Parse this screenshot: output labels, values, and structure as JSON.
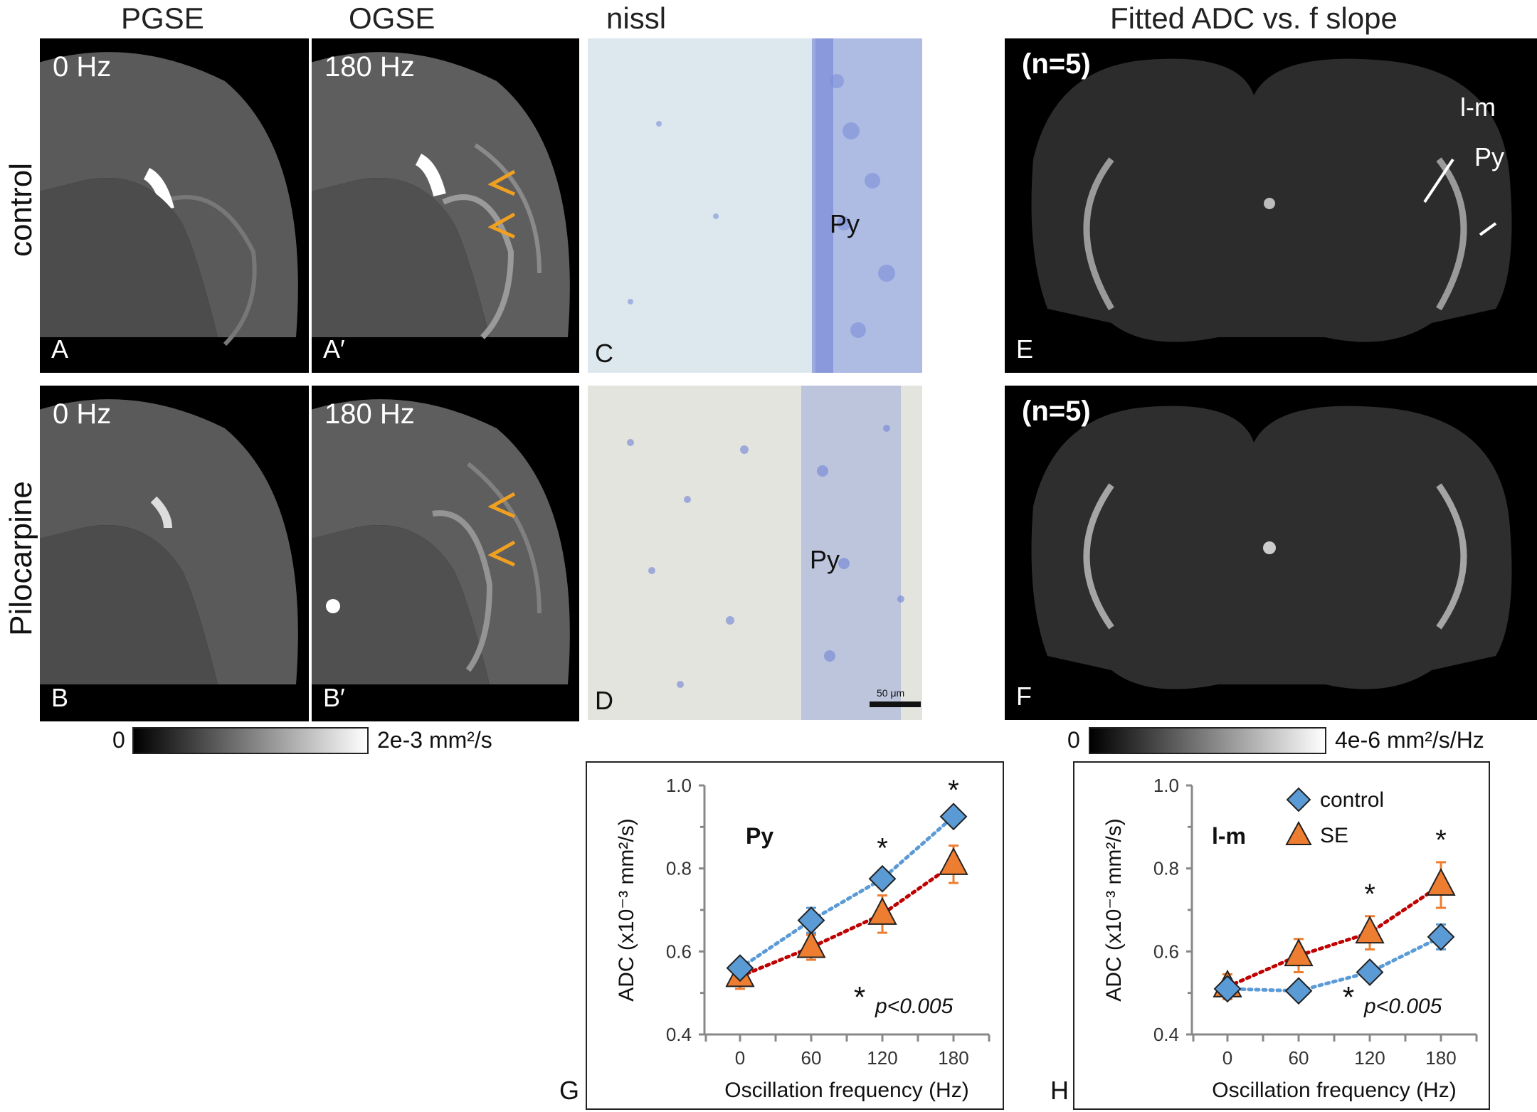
{
  "columns": {
    "pgse": "PGSE",
    "ogse": "OGSE",
    "nissl": "nissl",
    "fitted": "Fitted ADC vs. f slope"
  },
  "rows": {
    "control": "control",
    "pilocarpine": "Pilocarpine"
  },
  "panels": {
    "A": {
      "letter": "A",
      "freq": "0 Hz"
    },
    "A2": {
      "letter": "A′",
      "freq": "180 Hz"
    },
    "B": {
      "letter": "B",
      "freq": "0 Hz"
    },
    "B2": {
      "letter": "B′",
      "freq": "180 Hz"
    },
    "C": {
      "letter": "C",
      "region": "Py"
    },
    "D": {
      "letter": "D",
      "region": "Py",
      "scalebar": "50 μm"
    },
    "E": {
      "letter": "E",
      "n": "(n=5)",
      "lm": "l-m",
      "py": "Py"
    },
    "F": {
      "letter": "F",
      "n": "(n=5)"
    }
  },
  "colorbars": {
    "adc": {
      "min": "0",
      "max": "2e-3 mm²/s"
    },
    "slope": {
      "min": "0",
      "max": "4e-6 mm²/s/Hz"
    }
  },
  "colors": {
    "control": "#5b9bd5",
    "se": "#ed7d31",
    "control_line": "#5b9bd5",
    "se_line": "#c00000"
  },
  "chart_data": [
    {
      "type": "line",
      "panel": "G",
      "title": "Py",
      "xlabel": "Oscillation frequency (Hz)",
      "ylabel": "ADC (x10⁻³ mm²/s)",
      "x": [
        0,
        60,
        120,
        180
      ],
      "ylim": [
        0.4,
        1.0
      ],
      "yticks": [
        "0.4",
        "0.6",
        "0.8",
        "1.0"
      ],
      "xticks": [
        "0",
        "60",
        "120",
        "180"
      ],
      "series": [
        {
          "name": "control",
          "values": [
            0.56,
            0.675,
            0.775,
            0.925
          ],
          "errors": [
            0.015,
            0.03,
            0.02,
            0.01
          ]
        },
        {
          "name": "SE",
          "values": [
            0.54,
            0.61,
            0.69,
            0.81
          ],
          "errors": [
            0.03,
            0.03,
            0.045,
            0.045
          ]
        }
      ],
      "significance": [
        false,
        false,
        true,
        true
      ],
      "note": "p<0.005"
    },
    {
      "type": "line",
      "panel": "H",
      "title": "l-m",
      "xlabel": "Oscillation frequency (Hz)",
      "ylabel": "ADC (x10⁻³ mm²/s)",
      "x": [
        0,
        60,
        120,
        180
      ],
      "ylim": [
        0.4,
        1.0
      ],
      "yticks": [
        "0.4",
        "0.6",
        "0.8",
        "1.0"
      ],
      "xticks": [
        "0",
        "60",
        "120",
        "180"
      ],
      "series": [
        {
          "name": "control",
          "values": [
            0.51,
            0.505,
            0.55,
            0.635
          ],
          "errors": [
            0.02,
            0.015,
            0.015,
            0.03
          ]
        },
        {
          "name": "SE",
          "values": [
            0.515,
            0.59,
            0.645,
            0.76
          ],
          "errors": [
            0.03,
            0.04,
            0.04,
            0.055
          ]
        }
      ],
      "significance": [
        false,
        false,
        true,
        true
      ],
      "note": "p<0.005"
    }
  ]
}
